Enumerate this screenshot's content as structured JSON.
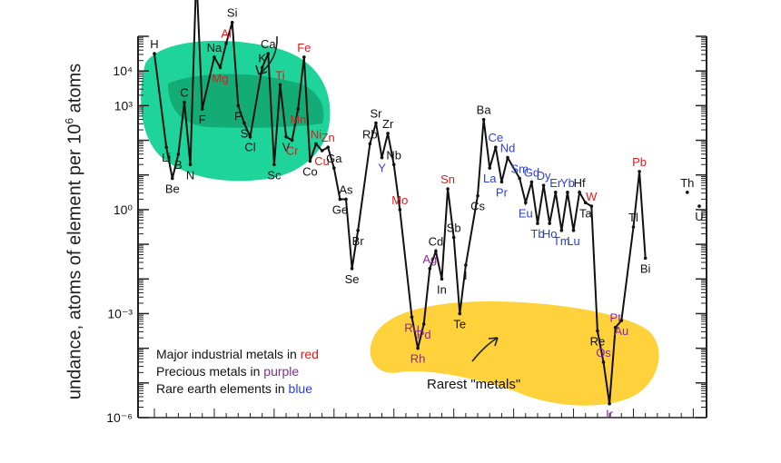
{
  "chart_data": {
    "type": "line",
    "ylabel_prefix": "undance, atoms of element per 10",
    "ylabel_exp": "6",
    "ylabel_suffix": "atoms",
    "yscale": "log",
    "ylim_exp": [
      -6,
      5
    ],
    "yticks": [
      {
        "exp": 4,
        "label": "10⁴"
      },
      {
        "exp": 3,
        "label": "10³"
      },
      {
        "exp": 0,
        "label": "10⁰"
      },
      {
        "exp": -3,
        "label": "10⁻³"
      },
      {
        "exp": -6,
        "label": "10⁻⁶"
      }
    ],
    "x_min": 1,
    "x_max": 92,
    "grid": false,
    "colors": {
      "line": "#111111",
      "industrial": "#e21a1a",
      "precious": "#8a2a9a",
      "rare_earth": "#2a3fe0",
      "default": "#111111",
      "green_blob": "#1ed49a",
      "green_inner": "#0b8a5a",
      "yellow_blob": "#ffd13a"
    },
    "legend": [
      {
        "label": "Major industrial metals in ",
        "word": "red",
        "color": "#e21a1a"
      },
      {
        "label": "Precious metals in ",
        "word": "purple",
        "color": "#8a2a9a"
      },
      {
        "label": "Rare earth elements in ",
        "word": "blue",
        "color": "#2a3fe0"
      }
    ],
    "annotation": "Rarest \"metals\"",
    "points": [
      {
        "z": 1,
        "s": "H",
        "e": 4.5,
        "c": "default"
      },
      {
        "z": 3,
        "s": "Li",
        "e": 1.8,
        "c": "default"
      },
      {
        "z": 4,
        "s": "Be",
        "e": 0.9,
        "c": "default"
      },
      {
        "z": 5,
        "s": "B",
        "e": 1.6,
        "c": "default"
      },
      {
        "z": 6,
        "s": "C",
        "e": 3.1,
        "c": "default"
      },
      {
        "z": 7,
        "s": "N",
        "e": 1.3,
        "c": "default"
      },
      {
        "z": 8,
        "s": "O",
        "e": 6.8,
        "c": "default"
      },
      {
        "z": 9,
        "s": "F",
        "e": 2.9,
        "c": "default"
      },
      {
        "z": 11,
        "s": "Na",
        "e": 4.4,
        "c": "default"
      },
      {
        "z": 12,
        "s": "Mg",
        "e": 4.1,
        "c": "industrial"
      },
      {
        "z": 13,
        "s": "Al",
        "e": 4.8,
        "c": "industrial"
      },
      {
        "z": 14,
        "s": "Si",
        "e": 5.4,
        "c": "default"
      },
      {
        "z": 15,
        "s": "P",
        "e": 3.0,
        "c": "default"
      },
      {
        "z": 16,
        "s": "S",
        "e": 2.5,
        "c": "default"
      },
      {
        "z": 17,
        "s": "Cl",
        "e": 2.1,
        "c": "default"
      },
      {
        "z": 19,
        "s": "K",
        "e": 4.1,
        "c": "default"
      },
      {
        "z": 20,
        "s": "Ca",
        "e": 4.5,
        "c": "default"
      },
      {
        "z": 21,
        "s": "Sc",
        "e": 1.3,
        "c": "default"
      },
      {
        "z": 22,
        "s": "Ti",
        "e": 3.6,
        "c": "industrial"
      },
      {
        "z": 23,
        "s": "V",
        "e": 2.1,
        "c": "default"
      },
      {
        "z": 24,
        "s": "Cr",
        "e": 2.0,
        "c": "industrial"
      },
      {
        "z": 25,
        "s": "Mn",
        "e": 2.9,
        "c": "industrial"
      },
      {
        "z": 26,
        "s": "Fe",
        "e": 4.4,
        "c": "industrial"
      },
      {
        "z": 27,
        "s": "Co",
        "e": 1.4,
        "c": "default"
      },
      {
        "z": 28,
        "s": "Ni",
        "e": 1.9,
        "c": "industrial"
      },
      {
        "z": 29,
        "s": "Cu",
        "e": 1.7,
        "c": "industrial"
      },
      {
        "z": 30,
        "s": "Zn",
        "e": 1.8,
        "c": "industrial"
      },
      {
        "z": 31,
        "s": "Ga",
        "e": 1.2,
        "c": "default"
      },
      {
        "z": 32,
        "s": "Ge",
        "e": 0.3,
        "c": "default"
      },
      {
        "z": 33,
        "s": "As",
        "e": 0.3,
        "c": "default"
      },
      {
        "z": 34,
        "s": "Se",
        "e": -1.7,
        "c": "default"
      },
      {
        "z": 35,
        "s": "Br",
        "e": -0.6,
        "c": "default"
      },
      {
        "z": 37,
        "s": "Rb",
        "e": 1.9,
        "c": "default"
      },
      {
        "z": 38,
        "s": "Sr",
        "e": 2.5,
        "c": "default"
      },
      {
        "z": 39,
        "s": "Y",
        "e": 1.5,
        "c": "rare_earth"
      },
      {
        "z": 40,
        "s": "Zr",
        "e": 2.2,
        "c": "default"
      },
      {
        "z": 41,
        "s": "Nb",
        "e": 1.3,
        "c": "default"
      },
      {
        "z": 42,
        "s": "Mo",
        "e": 0.0,
        "c": "industrial"
      },
      {
        "z": 44,
        "s": "Ru",
        "e": -3.1,
        "c": "precious"
      },
      {
        "z": 45,
        "s": "Rh",
        "e": -4.0,
        "c": "precious"
      },
      {
        "z": 46,
        "s": "Pd",
        "e": -3.3,
        "c": "precious"
      },
      {
        "z": 47,
        "s": "Ag",
        "e": -1.7,
        "c": "precious"
      },
      {
        "z": 48,
        "s": "Cd",
        "e": -1.2,
        "c": "default"
      },
      {
        "z": 49,
        "s": "In",
        "e": -2.0,
        "c": "default"
      },
      {
        "z": 50,
        "s": "Sn",
        "e": 0.6,
        "c": "industrial"
      },
      {
        "z": 51,
        "s": "Sb",
        "e": -0.8,
        "c": "default"
      },
      {
        "z": 52,
        "s": "Te",
        "e": -3.0,
        "c": "default"
      },
      {
        "z": 53,
        "s": "I",
        "e": -1.6,
        "c": "default"
      },
      {
        "z": 55,
        "s": "Cs",
        "e": 0.4,
        "c": "default"
      },
      {
        "z": 56,
        "s": "Ba",
        "e": 2.6,
        "c": "default"
      },
      {
        "z": 57,
        "s": "La",
        "e": 1.2,
        "c": "rare_earth"
      },
      {
        "z": 58,
        "s": "Ce",
        "e": 1.8,
        "c": "rare_earth"
      },
      {
        "z": 59,
        "s": "Pr",
        "e": 0.8,
        "c": "rare_earth"
      },
      {
        "z": 60,
        "s": "Nd",
        "e": 1.5,
        "c": "rare_earth"
      },
      {
        "z": 62,
        "s": "Sm",
        "e": 0.9,
        "c": "rare_earth"
      },
      {
        "z": 63,
        "s": "Eu",
        "e": 0.2,
        "c": "rare_earth"
      },
      {
        "z": 64,
        "s": "Gd",
        "e": 0.8,
        "c": "rare_earth"
      },
      {
        "z": 65,
        "s": "Tb",
        "e": -0.4,
        "c": "rare_earth"
      },
      {
        "z": 66,
        "s": "Dy",
        "e": 0.7,
        "c": "rare_earth"
      },
      {
        "z": 67,
        "s": "Ho",
        "e": -0.4,
        "c": "rare_earth"
      },
      {
        "z": 68,
        "s": "Er",
        "e": 0.5,
        "c": "rare_earth"
      },
      {
        "z": 69,
        "s": "Tm",
        "e": -0.6,
        "c": "rare_earth"
      },
      {
        "z": 70,
        "s": "Yb",
        "e": 0.5,
        "c": "rare_earth"
      },
      {
        "z": 71,
        "s": "Lu",
        "e": -0.6,
        "c": "rare_earth"
      },
      {
        "z": 72,
        "s": "Hf",
        "e": 0.5,
        "c": "default"
      },
      {
        "z": 73,
        "s": "Ta",
        "e": 0.2,
        "c": "default"
      },
      {
        "z": 74,
        "s": "W",
        "e": 0.1,
        "c": "industrial"
      },
      {
        "z": 75,
        "s": "Re",
        "e": -3.5,
        "c": "default"
      },
      {
        "z": 76,
        "s": "Os",
        "e": -4.4,
        "c": "precious"
      },
      {
        "z": 77,
        "s": "Ir",
        "e": -5.6,
        "c": "precious"
      },
      {
        "z": 78,
        "s": "Pt",
        "e": -3.4,
        "c": "precious"
      },
      {
        "z": 79,
        "s": "Au",
        "e": -3.2,
        "c": "precious"
      },
      {
        "z": 81,
        "s": "Tl",
        "e": -0.5,
        "c": "default"
      },
      {
        "z": 82,
        "s": "Pb",
        "e": 1.1,
        "c": "industrial"
      },
      {
        "z": 83,
        "s": "Bi",
        "e": -1.4,
        "c": "default"
      },
      {
        "z": 90,
        "s": "Th",
        "e": 0.5,
        "c": "default"
      },
      {
        "z": 92,
        "s": "U",
        "e": 0.1,
        "c": "default"
      }
    ]
  }
}
